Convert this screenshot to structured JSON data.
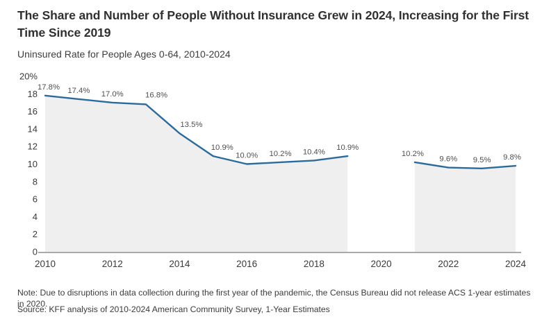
{
  "page": {
    "title": "The Share and Number of People Without Insurance Grew in 2024, Increasing for the First Time Since 2019",
    "subtitle": "Uninsured Rate for People Ages 0-64, 2010-2024",
    "note": "Note: Due to disruptions in data collection during the first year of the pandemic, the Census Bureau did not release ACS 1-year estimates in 2020.",
    "source": "Source: KFF analysis of 2010-2024 American Community Survey, 1-Year Estimates"
  },
  "colors": {
    "line": "#2a6b9c",
    "area_fill": "#efefef",
    "axis": "#a9a9a9",
    "tick_text": "#3a3a3a",
    "point_label_text": "#4f4f4f"
  },
  "chart_data": {
    "type": "area",
    "title": "Uninsured Rate for People Ages 0-64, 2010-2024",
    "xlabel": "",
    "ylabel": "",
    "xlim": [
      2010,
      2024
    ],
    "ylim": [
      0,
      20
    ],
    "grid": false,
    "legend": false,
    "x_tick_labels": [
      "2010",
      "2012",
      "2014",
      "2016",
      "2018",
      "2020",
      "2022",
      "2024"
    ],
    "y_tick_values": [
      0,
      2,
      4,
      6,
      8,
      10,
      12,
      14,
      16,
      18,
      20
    ],
    "y_tick_labels": [
      "0",
      "2",
      "4",
      "6",
      "8",
      "10",
      "12",
      "14",
      "16",
      "18",
      "20%"
    ],
    "missing_years": [
      2020
    ],
    "segments": [
      {
        "years": [
          2010,
          2011,
          2012,
          2013,
          2014,
          2015,
          2016,
          2017,
          2018,
          2019
        ],
        "values": [
          17.8,
          17.4,
          17.0,
          16.8,
          13.5,
          10.9,
          10.0,
          10.2,
          10.4,
          10.9
        ],
        "labels": [
          "17.8%",
          "17.4%",
          "17.0%",
          "16.8%",
          "13.5%",
          "10.9%",
          "10.0%",
          "10.2%",
          "10.4%",
          "10.9%"
        ]
      },
      {
        "years": [
          2021,
          2022,
          2023,
          2024
        ],
        "values": [
          10.2,
          9.6,
          9.5,
          9.8
        ],
        "labels": [
          "10.2%",
          "9.6%",
          "9.5%",
          "9.8%"
        ]
      }
    ]
  }
}
